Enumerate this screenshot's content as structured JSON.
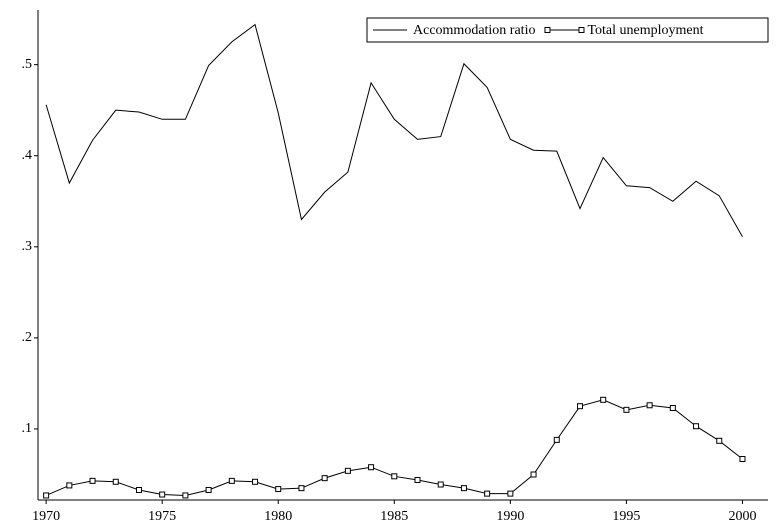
{
  "chart_data": {
    "type": "line",
    "x": [
      1970,
      1971,
      1972,
      1973,
      1974,
      1975,
      1976,
      1977,
      1978,
      1979,
      1980,
      1981,
      1982,
      1983,
      1984,
      1985,
      1986,
      1987,
      1988,
      1989,
      1990,
      1991,
      1992,
      1993,
      1994,
      1995,
      1996,
      1997,
      1998,
      1999,
      2000
    ],
    "series": [
      {
        "name": "Accommodation ratio",
        "color": "#000000",
        "marker": "none",
        "values": [
          0.456,
          0.37,
          0.417,
          0.45,
          0.448,
          0.44,
          0.44,
          0.499,
          0.525,
          0.544,
          0.447,
          0.33,
          0.36,
          0.382,
          0.48,
          0.44,
          0.418,
          0.421,
          0.501,
          0.475,
          0.418,
          0.406,
          0.405,
          0.342,
          0.398,
          0.367,
          0.365,
          0.35,
          0.372,
          0.356,
          0.311
        ]
      },
      {
        "name": "Total unemployment",
        "color": "#000000",
        "marker": "square",
        "values": [
          0.027,
          0.038,
          0.043,
          0.042,
          0.033,
          0.028,
          0.027,
          0.033,
          0.043,
          0.042,
          0.034,
          0.035,
          0.046,
          0.054,
          0.058,
          0.048,
          0.044,
          0.039,
          0.035,
          0.029,
          0.029,
          0.05,
          0.088,
          0.125,
          0.132,
          0.121,
          0.126,
          0.123,
          0.103,
          0.087,
          0.067
        ]
      }
    ],
    "xlim": [
      1969.65,
      2001.1
    ],
    "xticks": [
      1970,
      1975,
      1980,
      1985,
      1990,
      1995,
      2000
    ],
    "ylim": [
      0.022,
      0.56
    ],
    "yticks": [
      {
        "value": 0.1,
        "label": ".1"
      },
      {
        "value": 0.2,
        "label": ".2"
      },
      {
        "value": 0.3,
        "label": ".3"
      },
      {
        "value": 0.4,
        "label": ".4"
      },
      {
        "value": 0.5,
        "label": ".5"
      }
    ],
    "grid": false,
    "legend": "top-right"
  }
}
